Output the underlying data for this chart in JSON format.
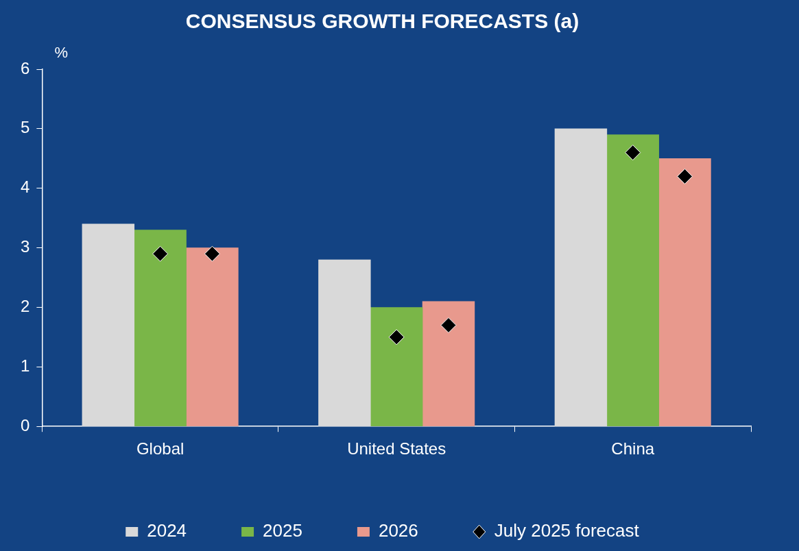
{
  "chart_data": {
    "type": "bar",
    "title": "CONSENSUS GROWTH FORECASTS (a)",
    "ylabel": "%",
    "categories": [
      "Global",
      "United States",
      "China"
    ],
    "series": [
      {
        "name": "2024",
        "color": "#d9d9d9",
        "values": [
          3.4,
          2.8,
          5.0
        ]
      },
      {
        "name": "2025",
        "color": "#7ab648",
        "values": [
          3.3,
          2.0,
          4.9
        ]
      },
      {
        "name": "2026",
        "color": "#e8998d",
        "values": [
          3.0,
          2.1,
          4.5
        ]
      },
      {
        "name": "July 2025 forecast",
        "type": "scatter",
        "color": "#000000",
        "marker": "diamond",
        "x": [
          "Global",
          "Global",
          "United States",
          "United States",
          "China",
          "China"
        ],
        "values": [
          2.9,
          2.9,
          1.5,
          1.7,
          4.6,
          4.2
        ]
      }
    ],
    "ylim": [
      0,
      6
    ],
    "yticks": [
      0,
      1,
      2,
      3,
      4,
      5,
      6
    ],
    "grid": false,
    "legend": "bottom"
  }
}
